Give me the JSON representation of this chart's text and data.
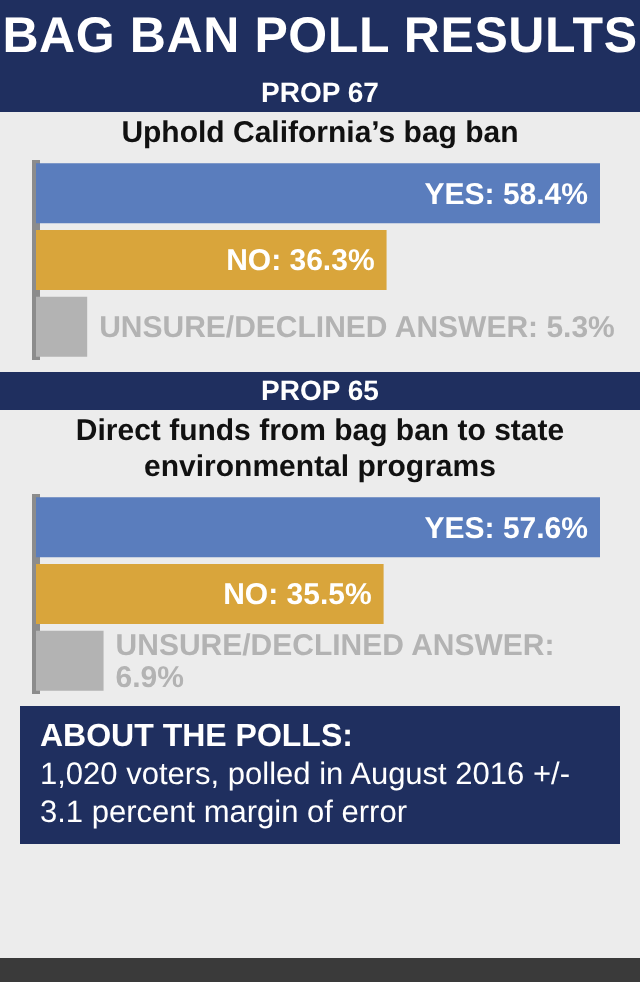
{
  "chart_data": [
    {
      "type": "other",
      "title": "BAG BAN POLL RESULTS"
    },
    {
      "type": "bar",
      "title": "PROP 67",
      "subtitle": "Uphold California’s bag ban",
      "orientation": "horizontal",
      "categories": [
        null,
        null,
        null
      ],
      "values": [
        58.4,
        36.3,
        5.3
      ],
      "colors": [
        "#5a7dbd",
        "#d9a53b",
        "#b3b3b3"
      ],
      "value_labels": [
        "YES: 58.4%",
        "NO: 36.3%",
        "UNSURE/DECLINED ANSWER: 5.3%"
      ]
    },
    {
      "type": "bar",
      "title": "PROP 65",
      "subtitle": "Direct funds from bag ban to state environmental programs",
      "orientation": "horizontal",
      "categories": [
        null,
        null,
        null
      ],
      "values": [
        57.6,
        35.5,
        6.9
      ],
      "colors": [
        "#5a7dbd",
        "#d9a53b",
        "#b3b3b3"
      ],
      "value_labels": [
        "YES: 57.6%",
        "NO: 35.5%",
        "UNSURE/DECLINED ANSWER: 6.9%"
      ]
    },
    {
      "type": "other",
      "title": "ABOUT THE POLLS:",
      "annotations": [
        "1,020 voters, polled in August 2016 +/- 3.1 percent margin of error"
      ]
    }
  ]
}
